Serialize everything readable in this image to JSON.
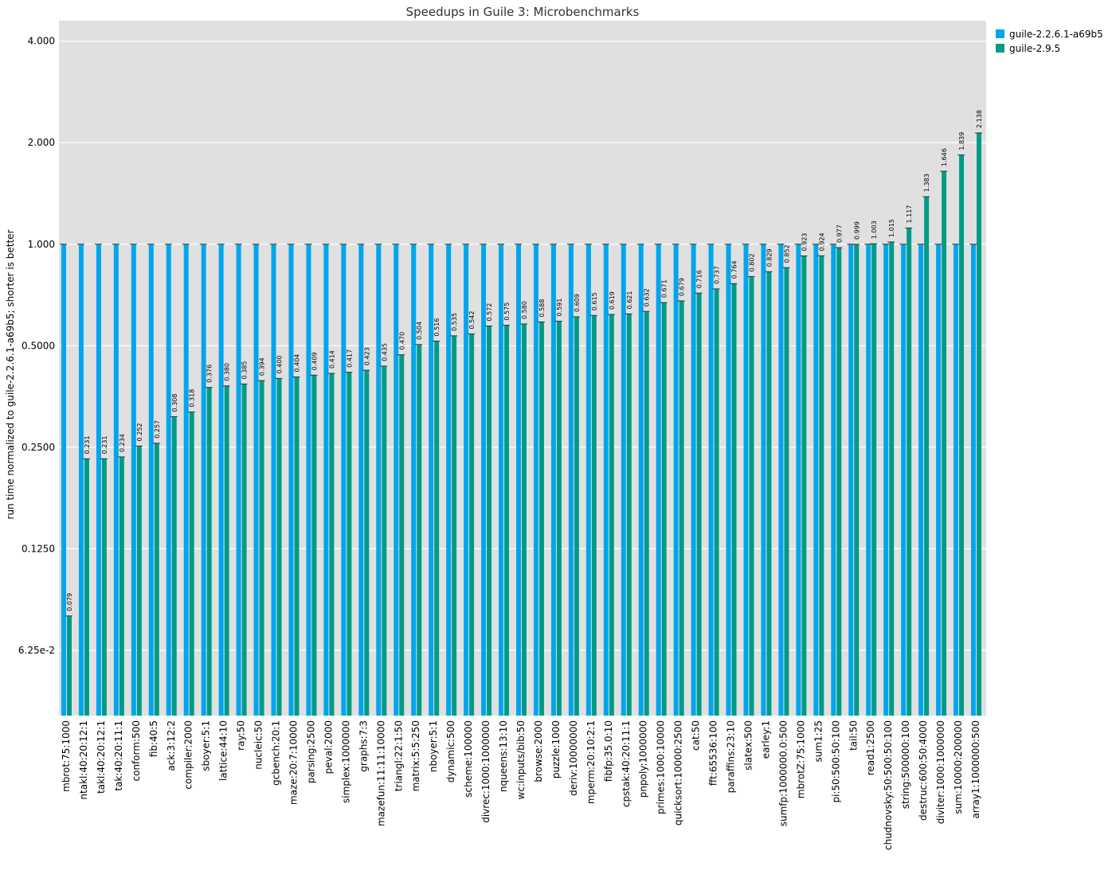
{
  "chart_data": {
    "type": "bar",
    "title": "Speedups in Guile 3: Microbenchmarks",
    "xlabel": "",
    "ylabel": "run time normalized to guile-2.2.6.1-a69b5; shorter is better",
    "y_scale": "log2",
    "ylim": [
      0.04,
      4.6
    ],
    "yticks": [
      0.0625,
      0.125,
      0.25,
      0.5,
      1.0,
      2.0,
      4.0
    ],
    "ytick_labels": [
      "6.25e-2",
      "0.1250",
      "0.2500",
      "0.5000",
      "1.000",
      "2.000",
      "4.000"
    ],
    "grid": true,
    "legend_position": "top-right, outside plot",
    "colors": {
      "plot_background": "#e0e0e0",
      "grid": "#ffffff",
      "baseline_series": "#00a6ed",
      "new_series": "#009b87"
    },
    "categories": [
      "mbrot:75:1000",
      "ntakl:40:20:12:1",
      "takl:40:20:12:1",
      "tak:40:20:11:1",
      "conform:500",
      "fib:40:5",
      "ack:3:12:2",
      "compiler:2000",
      "sboyer:5:1",
      "lattice:44:10",
      "ray:50",
      "nucleic:50",
      "gcbench:20:1",
      "maze:20:7:10000",
      "parsing:2500",
      "peval:2000",
      "simplex:1000000",
      "graphs:7:3",
      "mazefun:11:11:10000",
      "triangl:22:1:50",
      "matrix:5:5:250",
      "nboyer:5:1",
      "dynamic:500",
      "scheme:100000",
      "divrec:1000:1000000",
      "nqueens:13:10",
      "wc:inputs/bib:50",
      "browse:2000",
      "puzzle:1000",
      "deriv:10000000",
      "mperm:20:10:2:1",
      "fibfp:35.0:10",
      "cpstak:40:20:11:1",
      "pnpoly:1000000",
      "primes:1000:10000",
      "quicksort:10000:2500",
      "cat:50",
      "fft:65536:100",
      "paraffins:23:10",
      "slatex:500",
      "earley:1",
      "sumfp:1000000.0:500",
      "mbrotZ:75:1000",
      "sum1:25",
      "pi:50:500:50:100",
      "tail:50",
      "read1:2500",
      "chudnovsky:50:500:50:100",
      "string:500000:100",
      "destruc:600:50:4000",
      "diviter:1000:1000000",
      "sum:10000:200000",
      "array1:1000000:500"
    ],
    "series": [
      {
        "name": "guile-2.2.6.1-a69b5",
        "values": [
          1,
          1,
          1,
          1,
          1,
          1,
          1,
          1,
          1,
          1,
          1,
          1,
          1,
          1,
          1,
          1,
          1,
          1,
          1,
          1,
          1,
          1,
          1,
          1,
          1,
          1,
          1,
          1,
          1,
          1,
          1,
          1,
          1,
          1,
          1,
          1,
          1,
          1,
          1,
          1,
          1,
          1,
          1,
          1,
          1,
          1,
          1,
          1,
          1,
          1,
          1,
          1,
          1
        ]
      },
      {
        "name": "guile-2.9.5",
        "values": [
          0.079,
          0.231,
          0.231,
          0.234,
          0.252,
          0.257,
          0.308,
          0.318,
          0.376,
          0.38,
          0.385,
          0.394,
          0.4,
          0.404,
          0.409,
          0.414,
          0.417,
          0.423,
          0.435,
          0.47,
          0.504,
          0.516,
          0.535,
          0.542,
          0.572,
          0.575,
          0.58,
          0.588,
          0.591,
          0.609,
          0.615,
          0.619,
          0.621,
          0.632,
          0.671,
          0.679,
          0.716,
          0.737,
          0.764,
          0.802,
          0.829,
          0.852,
          0.923,
          0.924,
          0.977,
          0.999,
          1.003,
          1.015,
          1.117,
          1.383,
          1.646,
          1.839,
          2.138
        ],
        "labels": [
          "0.079",
          "0.231",
          "0.231",
          "0.234",
          "0.252",
          "0.257",
          "0.308",
          "0.318",
          "0.376",
          "0.380",
          "0.385",
          "0.394",
          "0.400",
          "0.404",
          "0.409",
          "0.414",
          "0.417",
          "0.423",
          "0.435",
          "0.470",
          "0.504",
          "0.516",
          "0.535",
          "0.542",
          "0.572",
          "0.575",
          "0.580",
          "0.588",
          "0.591",
          "0.609",
          "0.615",
          "0.619",
          "0.621",
          "0.632",
          "0.671",
          "0.679",
          "0.716",
          "0.737",
          "0.764",
          "0.802",
          "0.829",
          "0.852",
          "0.923",
          "0.924",
          "0.977",
          "0.999",
          "1.003",
          "1.015",
          "1.117",
          "1.383",
          "1.646",
          "1.839",
          "2.138"
        ]
      }
    ]
  }
}
